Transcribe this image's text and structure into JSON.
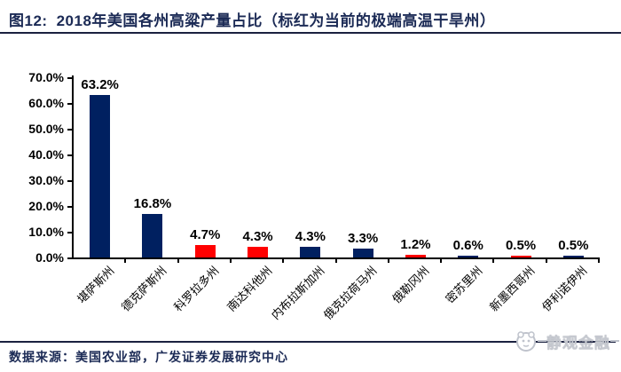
{
  "header": {
    "title_prefix": "图12:",
    "title": "2018年美国各州高粱产量占比（标红为当前的极端高温干旱州）"
  },
  "footer": {
    "source": "数据来源：美国农业部，广发证券发展研究中心",
    "watermark_text": "静观金融"
  },
  "chart_data": {
    "type": "bar",
    "title": "2018年美国各州高粱产量占比",
    "annotation": "标红为当前的极端高温干旱州",
    "categories": [
      "堪萨斯州",
      "德克萨斯州",
      "科罗拉多州",
      "南达科他州",
      "内布拉斯加州",
      "俄克拉荷马州",
      "俄勒冈州",
      "密苏里州",
      "新墨西哥州",
      "伊利诺伊州"
    ],
    "values": [
      63.2,
      16.8,
      4.7,
      4.3,
      4.3,
      3.3,
      1.2,
      0.6,
      0.5,
      0.5
    ],
    "value_labels": [
      "63.2%",
      "16.8%",
      "4.7%",
      "4.3%",
      "4.3%",
      "3.3%",
      "1.2%",
      "0.6%",
      "0.5%",
      "0.5%"
    ],
    "bar_color_keys": [
      "navy",
      "navy",
      "red",
      "red",
      "navy",
      "navy",
      "red",
      "navy",
      "red",
      "navy"
    ],
    "colors": {
      "navy": "#002060",
      "red": "#FF0000"
    },
    "ylim": [
      0,
      70
    ],
    "ytick_values": [
      70,
      60,
      50,
      40,
      30,
      20,
      10,
      0
    ],
    "ytick_labels": [
      "70.0%",
      "60.0%",
      "50.0%",
      "40.0%",
      "30.0%",
      "20.0%",
      "10.0%",
      "0.0%"
    ],
    "grid": false,
    "legend": false,
    "xlabel": "",
    "ylabel": ""
  }
}
